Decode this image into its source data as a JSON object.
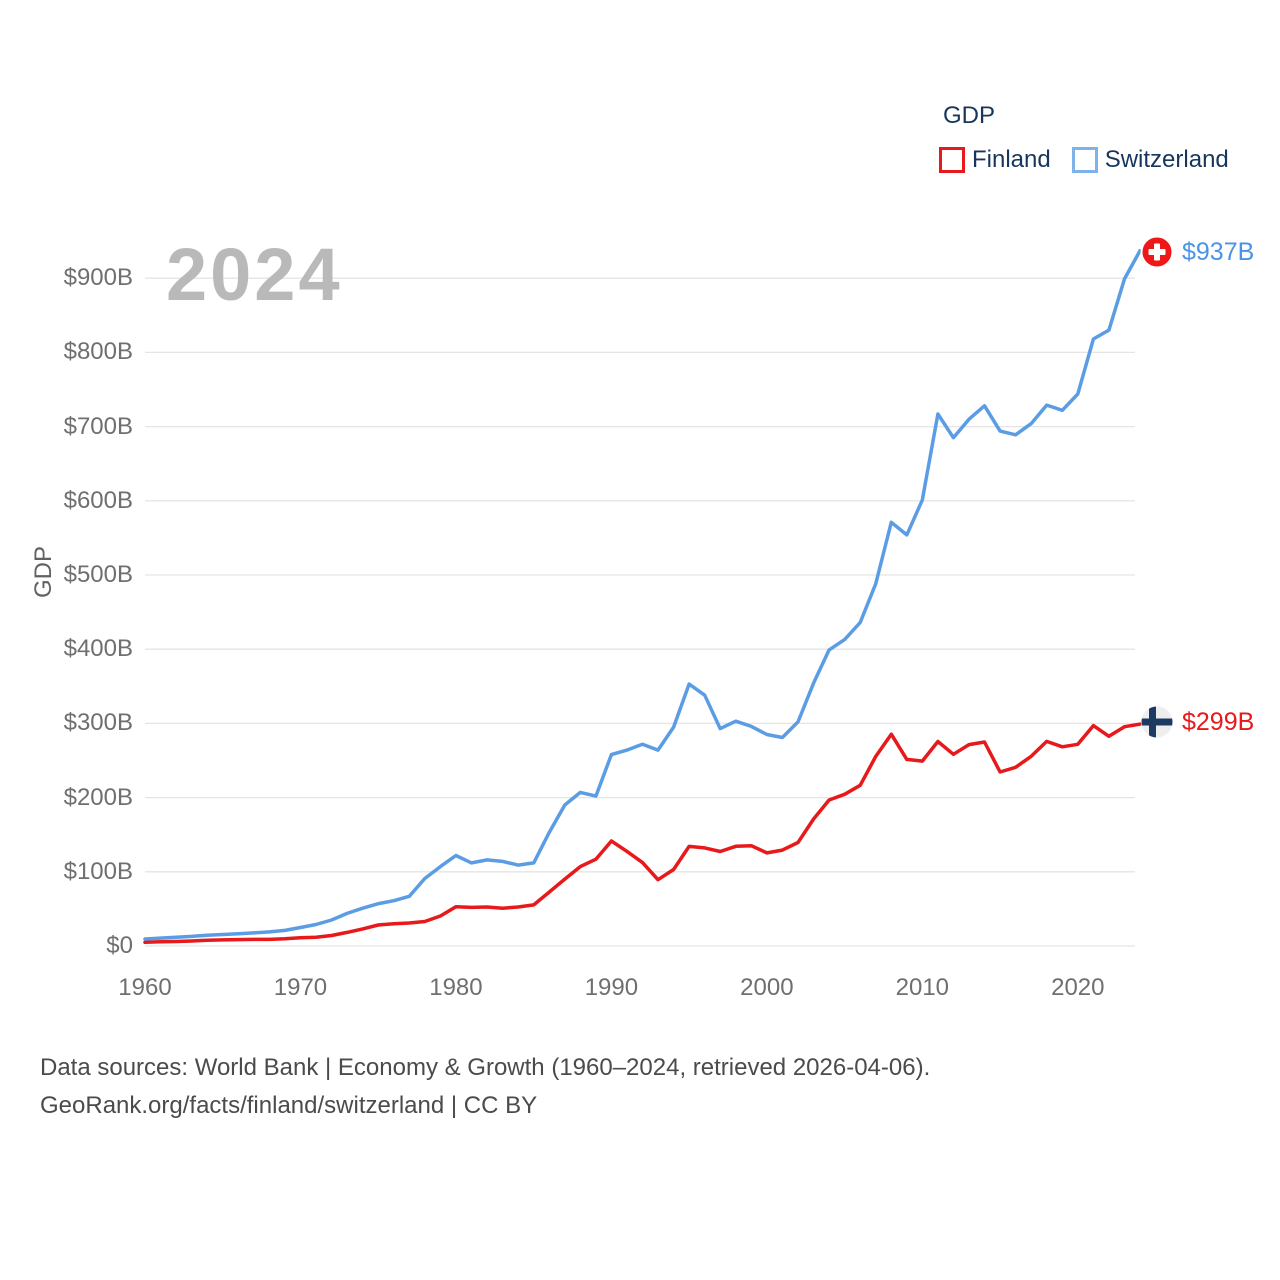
{
  "legend": {
    "title": "GDP",
    "items": [
      {
        "label": "Finland",
        "color": "#e8191b"
      },
      {
        "label": "Switzerland",
        "color": "#7db3ea"
      }
    ]
  },
  "watermark": "2024",
  "y_axis_title": "GDP",
  "end_labels": {
    "switzerland": {
      "text": "$937B",
      "flag": "switzerland-flag",
      "color": "#4a94e8"
    },
    "finland": {
      "text": "$299B",
      "flag": "finland-flag",
      "color": "#e8191b"
    }
  },
  "footer": {
    "line1": "Data sources: World Bank | Economy & Growth (1960–2024, retrieved 2026-04-06).",
    "line2": "GeoRank.org/facts/finland/switzerland | CC BY"
  },
  "chart_data": {
    "type": "line",
    "title": "GDP",
    "ylabel": "GDP",
    "y_unit": "USD billions",
    "xlim": [
      1960,
      2024
    ],
    "ylim": [
      0,
      950
    ],
    "grid": "horizontal-only",
    "legend_position": "top-right",
    "x_start": 1960,
    "x_end": 2024,
    "x_ticks": [
      1960,
      1970,
      1980,
      1990,
      2000,
      2010,
      2020
    ],
    "y_ticks": [
      {
        "value": 0,
        "label": "$0"
      },
      {
        "value": 100,
        "label": "$100B"
      },
      {
        "value": 200,
        "label": "$200B"
      },
      {
        "value": 300,
        "label": "$300B"
      },
      {
        "value": 400,
        "label": "$400B"
      },
      {
        "value": 500,
        "label": "$500B"
      },
      {
        "value": 600,
        "label": "$600B"
      },
      {
        "value": 700,
        "label": "$700B"
      },
      {
        "value": 800,
        "label": "$800B"
      },
      {
        "value": 900,
        "label": "$900B"
      }
    ],
    "series": [
      {
        "name": "Finland",
        "color": "#e8191b",
        "end_label": "$299B",
        "values": [
          5.0,
          5.6,
          6.1,
          6.7,
          7.7,
          8.2,
          8.6,
          8.9,
          8.9,
          9.7,
          11.0,
          11.9,
          14.1,
          18.3,
          23.0,
          28.3,
          30.1,
          31.0,
          33.0,
          40.4,
          53.0,
          52.0,
          52.5,
          51.0,
          52.5,
          55.4,
          72.7,
          90.2,
          107.0,
          117.0,
          141.5,
          127.5,
          112.4,
          89.3,
          103.1,
          134.2,
          132.2,
          127.4,
          134.4,
          135.2,
          125.5,
          129.3,
          139.5,
          171.0,
          196.8,
          204.4,
          216.6,
          255.4,
          285.5,
          251.5,
          249.2,
          275.6,
          258.3,
          271.4,
          274.9,
          234.5,
          240.8,
          255.6,
          275.7,
          268.5,
          271.9,
          297.0,
          282.6,
          295.5,
          299.0
        ]
      },
      {
        "name": "Switzerland",
        "color": "#5b9de4",
        "end_label": "$937B",
        "values": [
          9.5,
          10.7,
          11.8,
          12.9,
          14.5,
          15.5,
          16.5,
          17.6,
          19.0,
          21.0,
          25.0,
          29.0,
          35.0,
          44.0,
          51.0,
          57.0,
          61.0,
          67.0,
          91.0,
          107.0,
          122.0,
          112.0,
          116.0,
          114.0,
          109.0,
          112.0,
          153.0,
          190.0,
          207.0,
          202.0,
          258.0,
          264.0,
          272.0,
          264.0,
          295.0,
          353.0,
          338.0,
          293.0,
          303.0,
          296.0,
          285.0,
          281.0,
          302.0,
          354.0,
          399.0,
          413.0,
          436.0,
          488.0,
          571.0,
          554.0,
          601.0,
          717.0,
          685.0,
          710.0,
          728.0,
          694.0,
          689.0,
          704.0,
          729.0,
          722.0,
          744.0,
          818.0,
          830.0,
          899.0,
          937.0
        ]
      }
    ]
  }
}
